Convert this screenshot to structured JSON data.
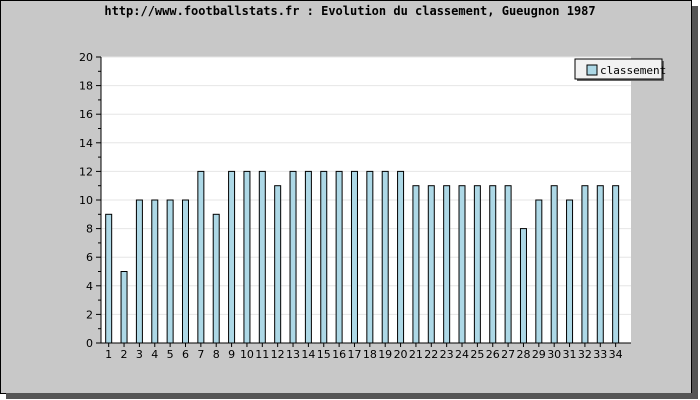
{
  "chart_data": {
    "type": "bar",
    "title": "http://www.footballstats.fr : Evolution du classement, Gueugnon 1987",
    "xlabel": "",
    "ylabel": "",
    "categories": [
      "1",
      "2",
      "3",
      "4",
      "5",
      "6",
      "7",
      "8",
      "9",
      "10",
      "11",
      "12",
      "13",
      "14",
      "15",
      "16",
      "17",
      "18",
      "19",
      "20",
      "21",
      "22",
      "23",
      "24",
      "25",
      "26",
      "27",
      "28",
      "29",
      "30",
      "31",
      "32",
      "33",
      "34"
    ],
    "series": [
      {
        "name": "classement",
        "values": [
          9,
          5,
          10,
          10,
          10,
          10,
          12,
          9,
          12,
          12,
          12,
          11,
          12,
          12,
          12,
          12,
          12,
          12,
          12,
          12,
          11,
          11,
          11,
          11,
          11,
          11,
          11,
          8,
          10,
          11,
          10,
          11,
          11,
          11
        ]
      }
    ],
    "ylim": [
      0,
      20
    ],
    "yticks": [
      0,
      2,
      4,
      6,
      8,
      10,
      12,
      14,
      16,
      18,
      20
    ],
    "grid": true,
    "legend_position": "top-right",
    "colors": {
      "bar_fill": "#add8e6",
      "bar_stroke": "#000000",
      "plot_background": "#ffffff",
      "frame_background": "#c8c8c8",
      "grid": "#e6e6e6"
    }
  }
}
